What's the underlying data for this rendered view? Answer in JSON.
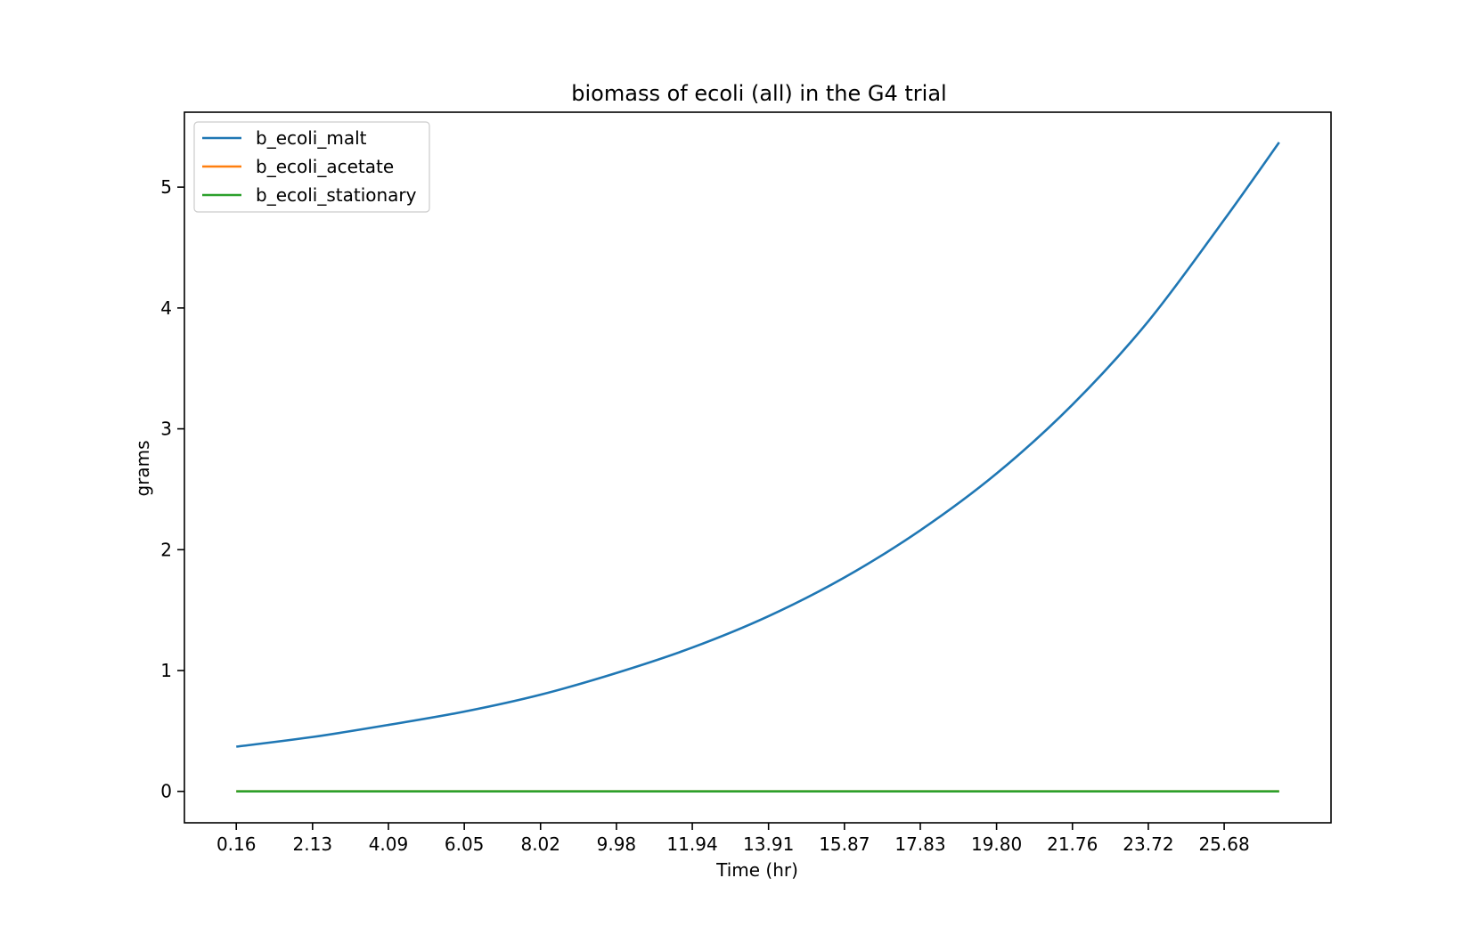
{
  "chart_data": {
    "type": "line",
    "title": "biomass of ecoli (all) in the G4 trial",
    "xlabel": "Time (hr)",
    "ylabel": "grams",
    "x_tick_labels": [
      "0.16",
      "2.13",
      "4.09",
      "6.05",
      "8.02",
      "9.98",
      "11.94",
      "13.91",
      "15.87",
      "17.83",
      "19.80",
      "21.76",
      "23.72",
      "25.68"
    ],
    "y_tick_labels": [
      "0",
      "1",
      "2",
      "3",
      "4",
      "5"
    ],
    "xlim": [
      -1.18,
      28.44
    ],
    "ylim": [
      -0.26,
      5.62
    ],
    "grid": false,
    "legend_position": "upper-left",
    "x": [
      0.16,
      2.13,
      4.09,
      6.05,
      8.02,
      9.98,
      11.94,
      13.91,
      15.87,
      17.83,
      19.8,
      21.76,
      23.72,
      25.68,
      27.1
    ],
    "series": [
      {
        "name": "b_ecoli_malt",
        "color": "#1f77b4",
        "values": [
          0.37,
          0.45,
          0.55,
          0.66,
          0.8,
          0.98,
          1.19,
          1.45,
          1.77,
          2.16,
          2.63,
          3.2,
          3.89,
          4.73,
          5.37
        ]
      },
      {
        "name": "b_ecoli_acetate",
        "color": "#ff7f0e",
        "values": [
          0,
          0,
          0,
          0,
          0,
          0,
          0,
          0,
          0,
          0,
          0,
          0,
          0,
          0,
          0
        ]
      },
      {
        "name": "b_ecoli_stationary",
        "color": "#2ca02c",
        "values": [
          0,
          0,
          0,
          0,
          0,
          0,
          0,
          0,
          0,
          0,
          0,
          0,
          0,
          0,
          0
        ]
      }
    ]
  }
}
